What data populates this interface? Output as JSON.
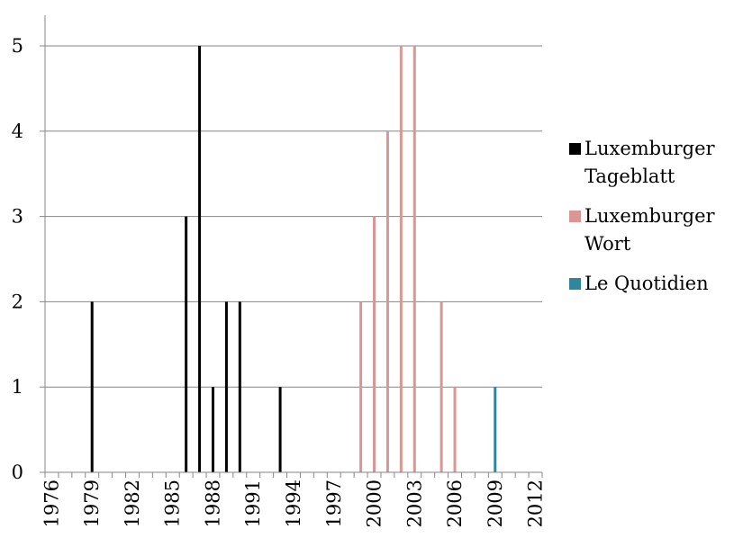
{
  "chart_data": {
    "type": "bar",
    "title": "",
    "xlabel": "",
    "ylabel": "",
    "xlim": [
      1976,
      2012
    ],
    "ylim": [
      0,
      5
    ],
    "x_ticks": [
      "1976",
      "1979",
      "1982",
      "1985",
      "1988",
      "1991",
      "1994",
      "1997",
      "2000",
      "2003",
      "2006",
      "2009",
      "2012"
    ],
    "y_ticks": [
      "0",
      "1",
      "2",
      "3",
      "4",
      "5"
    ],
    "grid": "horizontal",
    "legend": "right",
    "series": [
      {
        "name": "Luxemburger Tageblatt",
        "color": "#000000",
        "points": [
          {
            "x": 1979,
            "y": 2
          },
          {
            "x": 1986,
            "y": 3
          },
          {
            "x": 1987,
            "y": 5
          },
          {
            "x": 1988,
            "y": 1
          },
          {
            "x": 1989,
            "y": 2
          },
          {
            "x": 1990,
            "y": 2
          },
          {
            "x": 1993,
            "y": 1
          }
        ]
      },
      {
        "name": "Luxemburger Wort",
        "color": "#d99694",
        "points": [
          {
            "x": 1999,
            "y": 2
          },
          {
            "x": 2000,
            "y": 3
          },
          {
            "x": 2001,
            "y": 4
          },
          {
            "x": 2002,
            "y": 5
          },
          {
            "x": 2003,
            "y": 5
          },
          {
            "x": 2005,
            "y": 2
          },
          {
            "x": 2006,
            "y": 1
          }
        ]
      },
      {
        "name": "Le Quotidien",
        "color": "#31859c",
        "points": [
          {
            "x": 2009,
            "y": 1
          }
        ]
      }
    ]
  }
}
